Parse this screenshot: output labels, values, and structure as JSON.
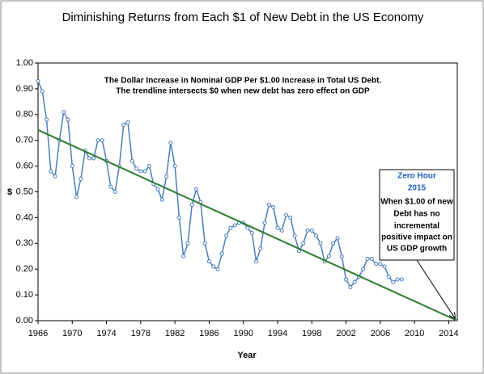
{
  "chart_data": {
    "type": "line",
    "title": "Diminishing Returns from Each $1 of New Debt in the US Economy",
    "subtitle": [
      "The Dollar Increase in Nominal GDP Per $1.00 Increase in Total US Debt.",
      "The trendline intersects $0 when new debt has zero effect on GDP"
    ],
    "xlabel": "Year",
    "ylabel": "$",
    "annotation": {
      "title": [
        "Zero Hour",
        "2015"
      ],
      "lines": [
        "When $1.00 of new",
        "Debt has no",
        "incremental",
        "positive impact on",
        "US GDP growth"
      ]
    },
    "xlim": [
      1966,
      2015
    ],
    "ylim": [
      0,
      1
    ],
    "xticks": [
      1966,
      1970,
      1974,
      1978,
      1982,
      1986,
      1990,
      1994,
      1998,
      2002,
      2006,
      2010,
      2014
    ],
    "yticks": [
      {
        "value": 0,
        "label": "0.00"
      },
      {
        "value": 0.1,
        "label": "0.10"
      },
      {
        "value": 0.2,
        "label": "0.20"
      },
      {
        "value": 0.3,
        "label": "0.30"
      },
      {
        "value": 0.4,
        "label": "0.40"
      },
      {
        "value": 0.5,
        "label": "0.50"
      },
      {
        "value": 0.6,
        "label": "0.60"
      },
      {
        "value": 0.7,
        "label": "0.70"
      },
      {
        "value": 0.8,
        "label": "0.80"
      },
      {
        "value": 0.9,
        "label": "0.90"
      },
      {
        "value": 1,
        "label": "1.00"
      }
    ],
    "series": [
      {
        "color": "#4a7ebb",
        "markers": true,
        "x": [
          1966,
          1966.5,
          1967,
          1967.5,
          1968,
          1968.5,
          1969,
          1969.5,
          1970,
          1970.5,
          1971,
          1971.5,
          1972,
          1972.5,
          1973,
          1973.5,
          1974,
          1974.5,
          1975,
          1975.5,
          1976,
          1976.5,
          1977,
          1977.5,
          1978,
          1978.5,
          1979,
          1979.5,
          1980,
          1980.5,
          1981,
          1981.5,
          1982,
          1982.5,
          1983,
          1983.5,
          1984,
          1984.5,
          1985,
          1985.5,
          1986,
          1986.5,
          1987,
          1987.5,
          1988,
          1988.5,
          1989,
          1989.5,
          1990,
          1990.5,
          1991,
          1991.5,
          1992,
          1992.5,
          1993,
          1993.5,
          1994,
          1994.5,
          1995,
          1995.5,
          1996,
          1996.5,
          1997,
          1997.5,
          1998,
          1998.5,
          1999,
          1999.5,
          2000,
          2000.5,
          2001,
          2001.5,
          2002,
          2002.5,
          2003,
          2003.5,
          2004,
          2004.5,
          2005,
          2005.5,
          2006,
          2006.5,
          2007,
          2007.5,
          2008,
          2008.5
        ],
        "values": [
          0.93,
          0.89,
          0.78,
          0.58,
          0.56,
          0.7,
          0.81,
          0.78,
          0.6,
          0.48,
          0.55,
          0.66,
          0.63,
          0.63,
          0.7,
          0.7,
          0.62,
          0.52,
          0.5,
          0.6,
          0.76,
          0.77,
          0.62,
          0.59,
          0.58,
          0.58,
          0.6,
          0.53,
          0.51,
          0.47,
          0.56,
          0.69,
          0.6,
          0.4,
          0.25,
          0.3,
          0.45,
          0.51,
          0.46,
          0.3,
          0.23,
          0.21,
          0.2,
          0.26,
          0.33,
          0.36,
          0.37,
          0.38,
          0.38,
          0.36,
          0.34,
          0.23,
          0.28,
          0.38,
          0.45,
          0.44,
          0.36,
          0.35,
          0.41,
          0.4,
          0.33,
          0.27,
          0.3,
          0.35,
          0.35,
          0.33,
          0.3,
          0.23,
          0.25,
          0.3,
          0.32,
          0.25,
          0.16,
          0.13,
          0.15,
          0.17,
          0.2,
          0.24,
          0.24,
          0.22,
          0.22,
          0.21,
          0.17,
          0.15,
          0.16,
          0.16
        ]
      },
      {
        "color": "#2e7d32",
        "markers": false,
        "x": [
          1966,
          2015
        ],
        "values": [
          0.74,
          0
        ]
      }
    ]
  }
}
